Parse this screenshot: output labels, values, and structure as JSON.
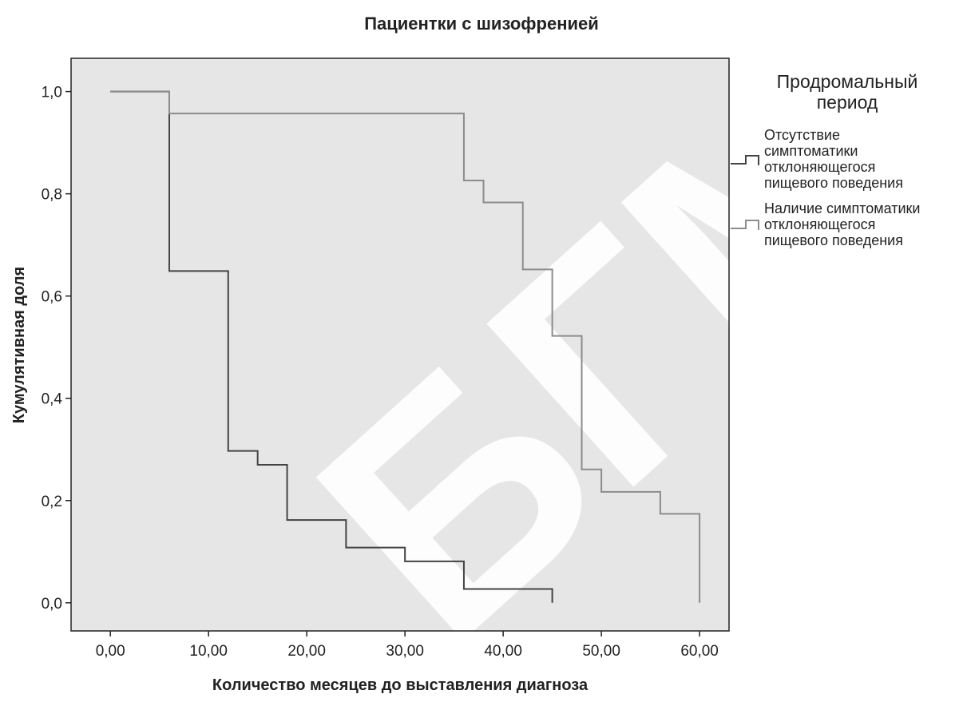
{
  "colors": {
    "plot_background": "#e6e6e6",
    "series_no_symptoms": "#444444",
    "series_with_symptoms": "#8c8c8c",
    "frame": "#222222"
  },
  "chart_data": {
    "type": "line",
    "subtype": "step",
    "title": "Пациентки  с шизофренией",
    "xlabel": "Количество месяцев до выставления диагноза",
    "ylabel": "Кумулятивная доля",
    "xlim": [
      -4,
      63
    ],
    "ylim": [
      -0.055,
      1.065
    ],
    "x_ticks": [
      0,
      10,
      20,
      30,
      40,
      50,
      60
    ],
    "x_tick_labels": [
      "0,00",
      "10,00",
      "20,00",
      "30,00",
      "40,00",
      "50,00",
      "60,00"
    ],
    "y_ticks": [
      0,
      0.2,
      0.4,
      0.6,
      0.8,
      1.0
    ],
    "y_tick_labels": [
      "0,0",
      "0,2",
      "0,4",
      "0,6",
      "0,8",
      "1,0"
    ],
    "grid": false,
    "legend_position": "right",
    "legend_title_lines": [
      "Продромальный",
      "период"
    ],
    "series": [
      {
        "name": "Отсутствие симптоматики отклоняющегося пищевого поведения",
        "name_lines": [
          "Отсутствие",
          "симптоматики",
          "отклоняющегося",
          "пищевого поведения"
        ],
        "color_key": "series_no_symptoms",
        "steps": [
          [
            0,
            1.0
          ],
          [
            6,
            0.649
          ],
          [
            12,
            0.297
          ],
          [
            15,
            0.27
          ],
          [
            18,
            0.162
          ],
          [
            24,
            0.108
          ],
          [
            30,
            0.081
          ],
          [
            36,
            0.027
          ],
          [
            45,
            0.0
          ]
        ],
        "end_x": 45
      },
      {
        "name": "Наличие симптоматики отклоняющегося пищевого поведения",
        "name_lines": [
          "Наличие симптоматики",
          "отклоняющегося",
          "пищевого поведения"
        ],
        "color_key": "series_with_symptoms",
        "steps": [
          [
            0,
            1.0
          ],
          [
            6,
            0.957
          ],
          [
            36,
            0.826
          ],
          [
            38,
            0.783
          ],
          [
            42,
            0.652
          ],
          [
            45,
            0.522
          ],
          [
            48,
            0.261
          ],
          [
            50,
            0.217
          ],
          [
            56,
            0.174
          ],
          [
            60,
            0.0
          ]
        ],
        "end_x": 60
      }
    ]
  }
}
